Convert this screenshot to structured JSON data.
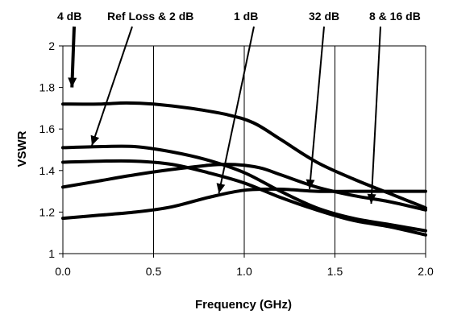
{
  "chart_data": {
    "type": "line",
    "xlabel": "Frequency (GHz)",
    "ylabel": "VSWR",
    "xlim": [
      0.0,
      2.0
    ],
    "ylim": [
      1.0,
      2.0
    ],
    "xticks": [
      0.0,
      0.5,
      1.0,
      1.5,
      2.0
    ],
    "xtick_labels": [
      "0.0",
      "0.5",
      "1.0",
      "1.5",
      "2.0"
    ],
    "yticks": [
      1.0,
      1.2,
      1.4,
      1.6,
      1.8,
      2.0
    ],
    "ytick_labels": [
      "1",
      "1.2",
      "1.4",
      "1.6",
      "1.8",
      "2"
    ],
    "grid": "vertical",
    "legend": "none",
    "series": [
      {
        "x": [
          0.0,
          0.2,
          0.35,
          0.5,
          0.7,
          0.9,
          1.05,
          1.2,
          1.4,
          1.6,
          1.8,
          2.0
        ],
        "values": [
          1.72,
          1.72,
          1.725,
          1.72,
          1.7,
          1.67,
          1.63,
          1.55,
          1.44,
          1.36,
          1.29,
          1.22
        ]
      },
      {
        "x": [
          0.0,
          0.2,
          0.4,
          0.6,
          0.8,
          1.0,
          1.2,
          1.4,
          1.6,
          1.8,
          2.0
        ],
        "values": [
          1.51,
          1.515,
          1.515,
          1.49,
          1.45,
          1.39,
          1.3,
          1.22,
          1.17,
          1.14,
          1.11
        ]
      },
      {
        "x": [
          0.0,
          0.2,
          0.4,
          0.6,
          0.8,
          1.0,
          1.2,
          1.4,
          1.6,
          1.8,
          2.0
        ],
        "values": [
          1.44,
          1.445,
          1.445,
          1.43,
          1.39,
          1.34,
          1.27,
          1.21,
          1.16,
          1.13,
          1.09
        ]
      },
      {
        "x": [
          0.0,
          0.2,
          0.4,
          0.6,
          0.8,
          0.9,
          1.0,
          1.1,
          1.2,
          1.4,
          1.6,
          1.8,
          2.0
        ],
        "values": [
          1.32,
          1.35,
          1.38,
          1.405,
          1.425,
          1.43,
          1.425,
          1.41,
          1.38,
          1.32,
          1.28,
          1.25,
          1.21
        ]
      },
      {
        "x": [
          0.0,
          0.2,
          0.4,
          0.6,
          0.8,
          1.0,
          1.2,
          1.4,
          1.6,
          1.8,
          2.0
        ],
        "values": [
          1.17,
          1.185,
          1.2,
          1.225,
          1.27,
          1.305,
          1.31,
          1.3,
          1.3,
          1.3,
          1.3
        ]
      }
    ],
    "annotations": [
      {
        "text": "4 dB",
        "target": [
          0.05,
          1.8
        ]
      },
      {
        "text": "Ref Loss & 2 dB",
        "target": [
          0.16,
          1.52
        ]
      },
      {
        "text": "1 dB",
        "target": [
          0.86,
          1.29
        ]
      },
      {
        "text": "32 dB",
        "target": [
          1.36,
          1.31
        ]
      },
      {
        "text": "8 & 16 dB",
        "target": [
          1.7,
          1.24
        ]
      }
    ]
  }
}
